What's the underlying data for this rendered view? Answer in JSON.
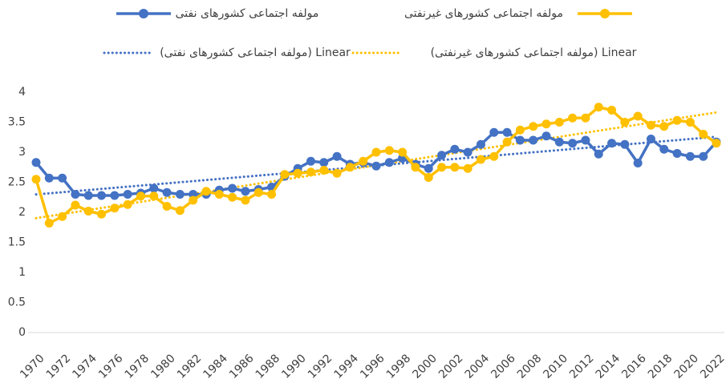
{
  "chart_data": {
    "type": "line",
    "categories": [
      "1970",
      null,
      "1972",
      null,
      "1974",
      null,
      "1976",
      null,
      "1978",
      null,
      "1980",
      null,
      "1982",
      null,
      "1984",
      null,
      "1986",
      null,
      "1988",
      null,
      "1990",
      null,
      "1992",
      null,
      "1994",
      null,
      "1996",
      null,
      "1998",
      null,
      "2000",
      null,
      "2002",
      null,
      "2004",
      null,
      "2006",
      null,
      "2008",
      null,
      "2010",
      null,
      "2012",
      null,
      "2014",
      null,
      "2016",
      null,
      "2018",
      null,
      "2020",
      null,
      "2022"
    ],
    "series": [
      {
        "name": "مولفه اجتماعی کشورهای نفتی",
        "color": "#4472c4",
        "values": [
          2.83,
          2.57,
          2.57,
          2.3,
          2.28,
          2.28,
          2.28,
          2.3,
          2.32,
          2.4,
          2.33,
          2.3,
          2.3,
          2.3,
          2.37,
          2.4,
          2.35,
          2.38,
          2.42,
          2.6,
          2.73,
          2.85,
          2.83,
          2.93,
          2.8,
          2.83,
          2.77,
          2.83,
          2.9,
          2.8,
          2.73,
          2.95,
          3.05,
          3.0,
          3.13,
          3.33,
          3.33,
          3.2,
          3.2,
          3.27,
          3.17,
          3.15,
          3.2,
          2.97,
          3.15,
          3.13,
          2.82,
          3.22,
          3.05,
          2.98,
          2.93,
          2.93,
          3.17
        ],
        "trendline": {
          "name": "Linear (مولفه اجتماعی کشورهای نفتی)",
          "color": "#4472c4"
        }
      },
      {
        "name": "مولفه اجتماعی کشورهای غیرنفتی",
        "color": "#ffc000",
        "values": [
          2.55,
          1.82,
          1.93,
          2.12,
          2.02,
          1.97,
          2.07,
          2.13,
          2.27,
          2.27,
          2.1,
          2.03,
          2.2,
          2.35,
          2.3,
          2.25,
          2.2,
          2.33,
          2.3,
          2.63,
          2.65,
          2.67,
          2.7,
          2.65,
          2.75,
          2.85,
          3.0,
          3.03,
          3.0,
          2.75,
          2.58,
          2.75,
          2.75,
          2.73,
          2.88,
          2.93,
          3.17,
          3.37,
          3.43,
          3.47,
          3.5,
          3.57,
          3.57,
          3.75,
          3.7,
          3.5,
          3.6,
          3.45,
          3.43,
          3.53,
          3.5,
          3.3,
          3.15
        ],
        "trendline": {
          "name": "Linear (مولفه اجتماعی کشورهای غیرنفتی)",
          "color": "#ffc000"
        }
      }
    ],
    "ylim": [
      0,
      4
    ],
    "yticks": [
      0,
      0.5,
      1,
      1.5,
      2,
      2.5,
      3,
      3.5,
      4
    ],
    "grid": false,
    "legend": "top"
  }
}
